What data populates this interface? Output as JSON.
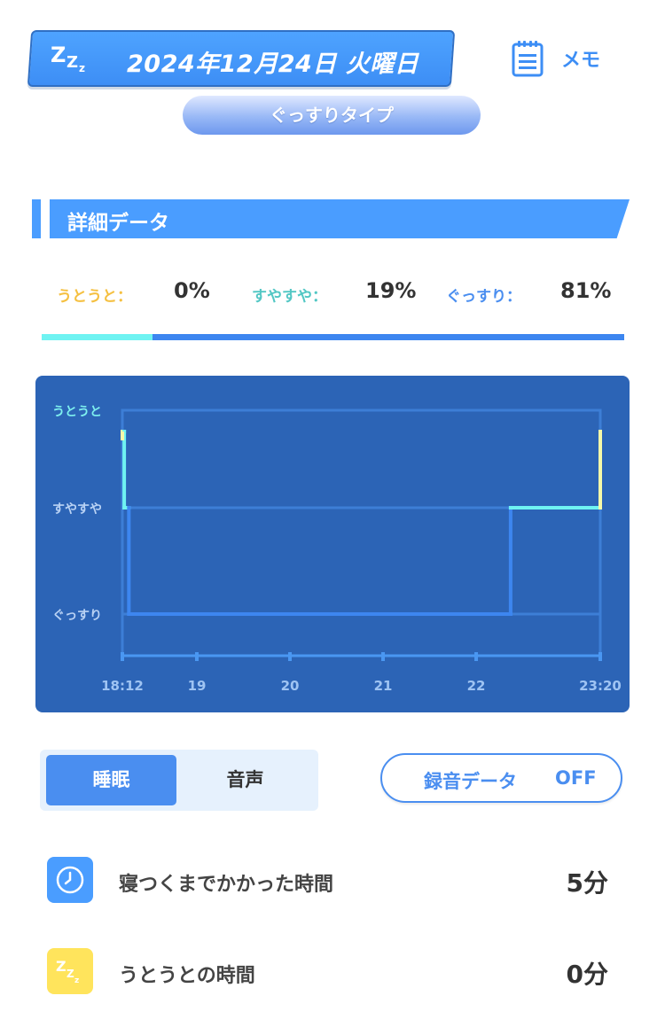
{
  "header": {
    "date": "2024年12月24日 火曜日",
    "zzz": [
      "Z",
      "Z",
      "z"
    ],
    "memo_label": "メモ",
    "memo_icon": "notepad-icon"
  },
  "sleep_type": "ぐっすりタイプ",
  "section": {
    "title": "詳細データ"
  },
  "stats": [
    {
      "label": "うとうと：",
      "value": "0%",
      "color": "#f5c041",
      "fraction": 0.0
    },
    {
      "label": "すやすや：",
      "value": "19%",
      "color": "#52c7c4",
      "fraction": 0.19
    },
    {
      "label": "ぐっすり：",
      "value": "81%",
      "color": "#4a8ef0",
      "fraction": 0.81
    }
  ],
  "chart_data": {
    "type": "line",
    "y_levels": [
      "うとうと",
      "すやすや",
      "ぐっすり"
    ],
    "x_ticks": [
      "18:12",
      "19",
      "20",
      "21",
      "22",
      "23:20"
    ],
    "x_range_hours": [
      18.2,
      23.333
    ],
    "series": [
      {
        "points": [
          {
            "t": 18.2,
            "level": "うとうと"
          },
          {
            "t": 18.22,
            "level": "すやすや"
          },
          {
            "t": 18.27,
            "level": "ぐっすり"
          },
          {
            "t": 22.37,
            "level": "すやすや"
          },
          {
            "t": 23.333,
            "level": "うとうと"
          }
        ]
      }
    ],
    "colors": {
      "background": "#2c64b6",
      "deep": "#3d86f0",
      "light": "#6ff3f2",
      "onset": "#f6f9a8"
    }
  },
  "tabs": {
    "active": "睡眠",
    "inactive": "音声"
  },
  "recording": {
    "label": "録音データ",
    "state": "OFF"
  },
  "rows": [
    {
      "icon": "clock-icon",
      "label": "寝つくまでかかった時間",
      "value": "5分",
      "color": "#4a9dff"
    },
    {
      "icon": "zzz-icon",
      "label": "うとうとの時間",
      "value": "0分",
      "color": "#ffe45c"
    }
  ]
}
